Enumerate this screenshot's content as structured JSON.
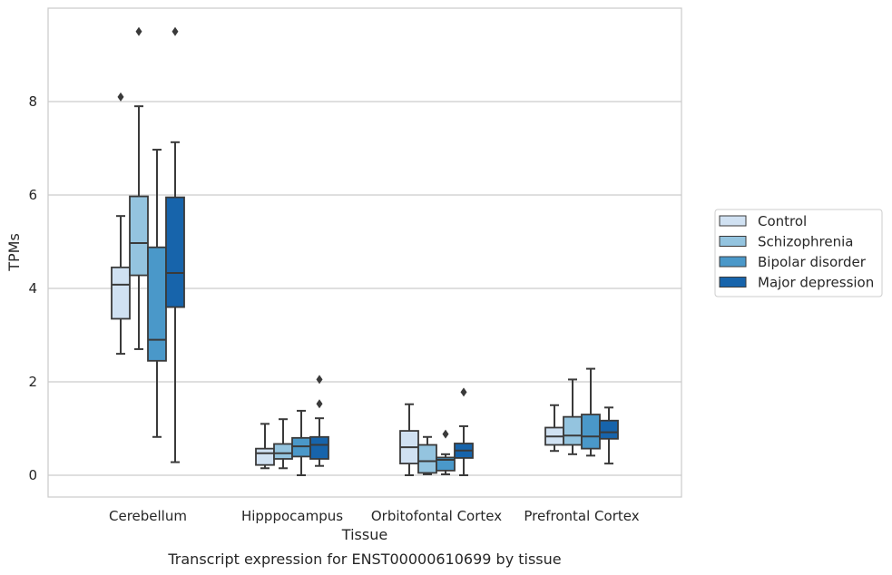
{
  "chart_data": {
    "type": "box",
    "title": "",
    "caption": "Transcript expression for ENST00000610699 by tissue",
    "xlabel": "Tissue",
    "ylabel": "TPMs",
    "ylim": [
      -0.45,
      9.95
    ],
    "yticks": [
      "0",
      "2",
      "4",
      "6",
      "8"
    ],
    "grid": "horizontal",
    "legend_position": "right",
    "categories": [
      "Cerebellum",
      "Hipppocampus",
      "Orbitofontal Cortex",
      "Prefrontal Cortex"
    ],
    "series": [
      {
        "name": "Control",
        "color": "#d0e1f2",
        "boxes": [
          {
            "min": 2.6,
            "q1": 3.35,
            "median": 4.08,
            "q3": 4.45,
            "max": 5.55,
            "outliers": [
              8.1
            ]
          },
          {
            "min": 0.15,
            "q1": 0.22,
            "median": 0.47,
            "q3": 0.57,
            "max": 1.1,
            "outliers": []
          },
          {
            "min": 0.0,
            "q1": 0.25,
            "median": 0.6,
            "q3": 0.95,
            "max": 1.52,
            "outliers": []
          },
          {
            "min": 0.52,
            "q1": 0.65,
            "median": 0.83,
            "q3": 1.02,
            "max": 1.5,
            "outliers": []
          }
        ]
      },
      {
        "name": "Schizophrenia",
        "color": "#94c4df",
        "boxes": [
          {
            "min": 2.7,
            "q1": 4.28,
            "median": 4.97,
            "q3": 5.97,
            "max": 7.9,
            "outliers": [
              9.5
            ]
          },
          {
            "min": 0.15,
            "q1": 0.35,
            "median": 0.47,
            "q3": 0.67,
            "max": 1.2,
            "outliers": []
          },
          {
            "min": 0.02,
            "q1": 0.05,
            "median": 0.3,
            "q3": 0.65,
            "max": 0.82,
            "outliers": []
          },
          {
            "min": 0.45,
            "q1": 0.65,
            "median": 0.85,
            "q3": 1.25,
            "max": 2.05,
            "outliers": []
          }
        ]
      },
      {
        "name": "Bipolar disorder",
        "color": "#4a98c9",
        "boxes": [
          {
            "min": 0.82,
            "q1": 2.45,
            "median": 2.9,
            "q3": 4.88,
            "max": 6.97,
            "outliers": []
          },
          {
            "min": 0.0,
            "q1": 0.4,
            "median": 0.62,
            "q3": 0.8,
            "max": 1.38,
            "outliers": []
          },
          {
            "min": 0.02,
            "q1": 0.1,
            "median": 0.33,
            "q3": 0.38,
            "max": 0.45,
            "outliers": [
              0.88
            ]
          },
          {
            "min": 0.42,
            "q1": 0.57,
            "median": 0.83,
            "q3": 1.3,
            "max": 2.28,
            "outliers": []
          }
        ]
      },
      {
        "name": "Major depression",
        "color": "#1764ab",
        "boxes": [
          {
            "min": 0.28,
            "q1": 3.6,
            "median": 4.33,
            "q3": 5.95,
            "max": 7.13,
            "outliers": [
              9.5
            ]
          },
          {
            "min": 0.2,
            "q1": 0.35,
            "median": 0.65,
            "q3": 0.82,
            "max": 1.22,
            "outliers": [
              1.53,
              2.05
            ]
          },
          {
            "min": 0.0,
            "q1": 0.37,
            "median": 0.53,
            "q3": 0.68,
            "max": 1.05,
            "outliers": [
              1.78
            ]
          },
          {
            "min": 0.25,
            "q1": 0.78,
            "median": 0.92,
            "q3": 1.17,
            "max": 1.45,
            "outliers": []
          }
        ]
      }
    ]
  }
}
